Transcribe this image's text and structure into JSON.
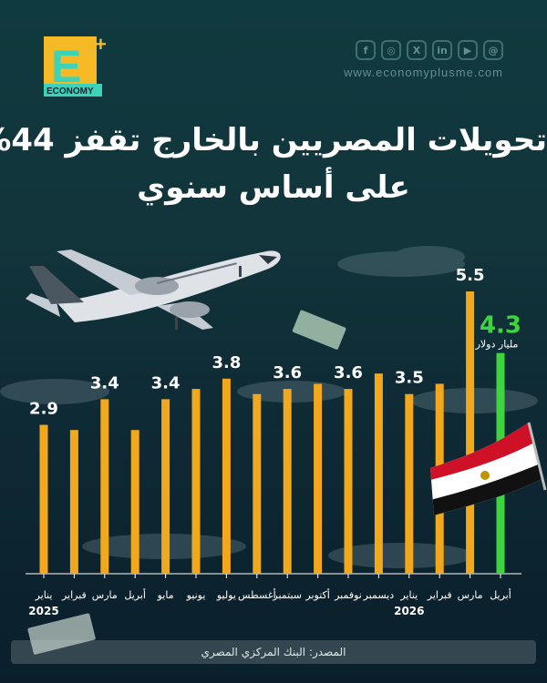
{
  "brand": {
    "logo_letter": "E",
    "logo_sub": "ECONOMY",
    "website": "www.economyplusme.com"
  },
  "social_icons": [
    "facebook-icon",
    "instagram-icon",
    "x-icon",
    "linkedin-icon",
    "youtube-icon",
    "threads-icon"
  ],
  "title": {
    "line1": "تحويلات المصريين بالخارج تقفز 44%",
    "line2": "على أساس سنوي"
  },
  "source": "المصدر: البنك المركزي المصري",
  "colors": {
    "bar": "#f2a81d",
    "highlight": "#3ed43e",
    "background": "#12343b"
  },
  "chart_data": {
    "type": "bar",
    "categories": [
      "يناير",
      "فبراير",
      "مارس",
      "أبريل",
      "مايو",
      "يونيو",
      "يوليو",
      "أغسطس",
      "سبتمبر",
      "أكتوبر",
      "نوفمبر",
      "ديسمبر",
      "يناير",
      "فبراير",
      "مارس",
      "أبريل"
    ],
    "years": [
      {
        "label": "2025",
        "index": 0
      },
      {
        "label": "2026",
        "index": 12
      }
    ],
    "values": [
      2.9,
      2.8,
      3.4,
      2.8,
      3.4,
      3.6,
      3.8,
      3.5,
      3.6,
      3.7,
      3.6,
      3.9,
      3.5,
      3.7,
      5.5,
      4.3
    ],
    "labels": [
      "2.9",
      "",
      "3.4",
      "",
      "3.4",
      "",
      "3.8",
      "",
      "3.6",
      "",
      "3.6",
      "",
      "3.5",
      "",
      "5.5",
      "4.3"
    ],
    "highlight_index": 15,
    "highlight_unit": "مليار دولار",
    "ylim": [
      0,
      5.5
    ]
  }
}
